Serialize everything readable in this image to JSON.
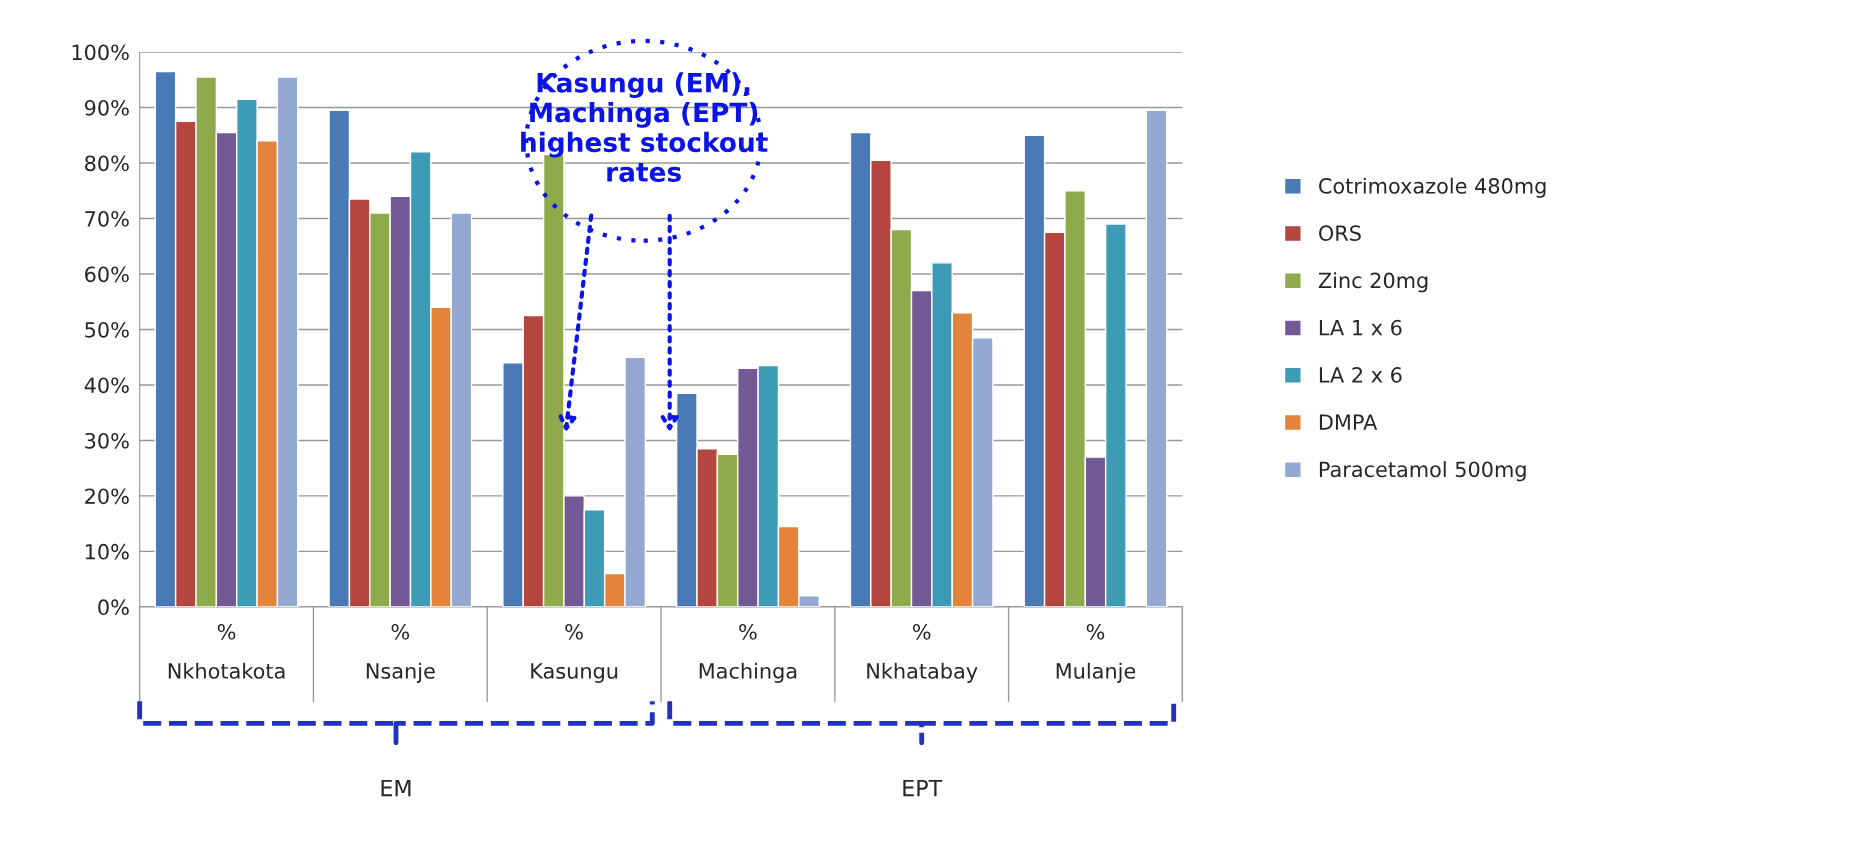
{
  "chart_data": {
    "type": "bar",
    "categories": [
      "%\nNkhotakota",
      "%\nNsanje",
      "%\nKasungu",
      "%\nMachinga",
      "%\nNkhatabay",
      "%\nMulanje"
    ],
    "series": [
      {
        "name": "Cotrimoxazole 480mg",
        "color": "#4a7ab5",
        "values": [
          96.5,
          89.5,
          44,
          38.5,
          85.5,
          85
        ]
      },
      {
        "name": "ORS",
        "color": "#b5453f",
        "values": [
          87.5,
          73.5,
          52.5,
          28.5,
          80.5,
          67.5
        ]
      },
      {
        "name": "Zinc 20mg",
        "color": "#8eaa4a",
        "values": [
          95.5,
          71,
          81.5,
          27.5,
          68,
          75
        ]
      },
      {
        "name": "LA 1 x 6",
        "color": "#735a96",
        "values": [
          85.5,
          74,
          20,
          43,
          57,
          27
        ]
      },
      {
        "name": "LA 2 x 6",
        "color": "#3d9bb5",
        "values": [
          91.5,
          82,
          17.5,
          43.5,
          62,
          69
        ]
      },
      {
        "name": "DMPA",
        "color": "#e3843a",
        "values": [
          84,
          54,
          6,
          14.5,
          53,
          null
        ]
      },
      {
        "name": "Paracetamol 500mg",
        "color": "#93a9d2",
        "values": [
          95.5,
          71,
          45,
          2,
          48.5,
          89.5
        ]
      }
    ],
    "ylim": [
      0,
      100
    ],
    "yticks": [
      {
        "value": 0,
        "label": "0%"
      },
      {
        "value": 10,
        "label": "10%"
      },
      {
        "value": 20,
        "label": "20%"
      },
      {
        "value": 30,
        "label": "30%"
      },
      {
        "value": 40,
        "label": "40%"
      },
      {
        "value": 50,
        "label": "50%"
      },
      {
        "value": 60,
        "label": "60%"
      },
      {
        "value": 70,
        "label": "70%"
      },
      {
        "value": 80,
        "label": "80%"
      },
      {
        "value": 90,
        "label": "90%"
      },
      {
        "value": 100,
        "label": "100%"
      }
    ],
    "grid": "y",
    "legend": "right",
    "annotations": [
      "Kasungu (EM), Machinga (EPT) highest stockout rates",
      "EM",
      "EPT"
    ]
  }
}
